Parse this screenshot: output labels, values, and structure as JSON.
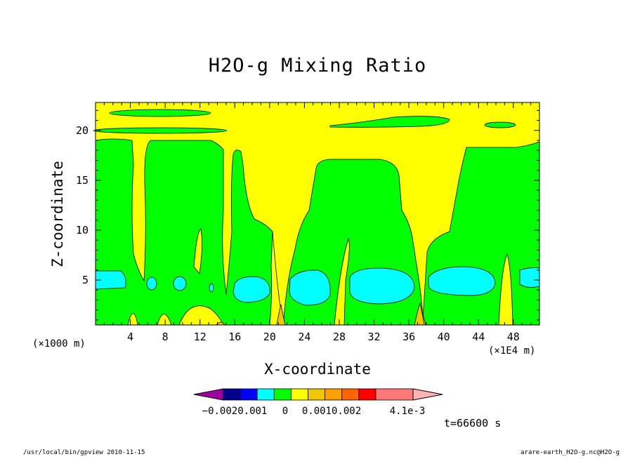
{
  "chart_data": {
    "type": "heatmap",
    "title": "H2O-g Mixing Ratio",
    "xlabel": "X-coordinate",
    "ylabel": "Z-coordinate",
    "x_unit": "(×1E4 m)",
    "y_unit": "(×1000 m)",
    "x_ticks": [
      "4",
      "8",
      "12",
      "16",
      "20",
      "24",
      "28",
      "32",
      "36",
      "40",
      "44",
      "48"
    ],
    "y_ticks": [
      "5",
      "10",
      "15",
      "20"
    ],
    "xlim": [
      0,
      51
    ],
    "ylim": [
      0.5,
      22.8
    ],
    "time": "t=66600 s",
    "colorbar": {
      "labels": [
        "−0.0020.001",
        "0",
        "0.0010.002",
        "4.1e-3"
      ],
      "colors": [
        "#a000a0",
        "#000090",
        "#0000ff",
        "#00ffff",
        "#00ff00",
        "#ffff00",
        "#f0c800",
        "#ffa000",
        "#ff6400",
        "#ff0000",
        "#ff7878",
        "#ffb4b4"
      ]
    },
    "regions": [
      {
        "level": "yellow",
        "color": "#ffff00",
        "shape": "background"
      },
      {
        "level": "green",
        "color": "#00ff00",
        "shape": "moist lower layer, columns up to ~19 km"
      },
      {
        "level": "cyan",
        "color": "#00ffff",
        "shape": "pockets near 3-5 km"
      },
      {
        "level": "orange",
        "color": "#f0c800",
        "shape": "small plumes near surface"
      }
    ]
  },
  "footer": {
    "left": "/usr/local/bin/gpview   2010-11-15",
    "right": "arare-earth_H2O-g.nc@H2O-g"
  }
}
